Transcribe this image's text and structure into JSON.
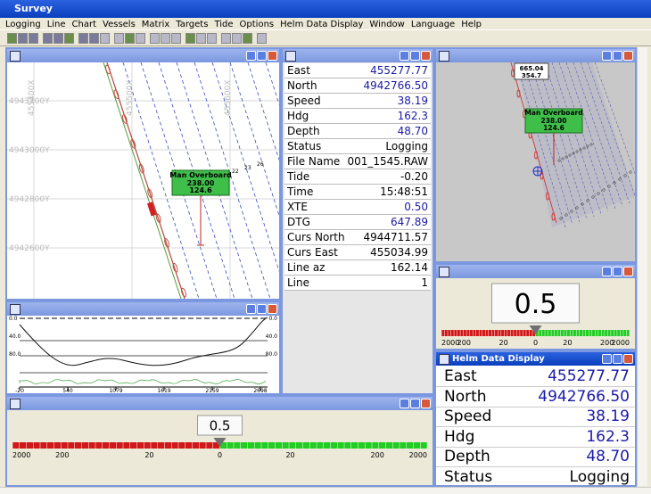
{
  "app_title": "Survey",
  "menu": [
    "Logging",
    "Line",
    "Chart",
    "Vessels",
    "Matrix",
    "Targets",
    "Tide",
    "Options",
    "Helm Data Display",
    "Window",
    "Language",
    "Help"
  ],
  "map": {
    "y_labels": [
      "4943200Y",
      "4943000Y",
      "4942800Y",
      "4942600Y"
    ],
    "x_labels": [
      "455400X",
      "455500X",
      "455600X"
    ],
    "points": [
      "22",
      "23",
      "26"
    ],
    "marker": {
      "title": "Man Overboard",
      "lines": [
        "238.00",
        "124.6"
      ]
    }
  },
  "data_table": {
    "rows": [
      {
        "label": "East",
        "value": "455277.77",
        "color": "#1a1aa6"
      },
      {
        "label": "North",
        "value": "4942766.50",
        "color": "#1a1aa6"
      },
      {
        "label": "Speed",
        "value": "38.19",
        "color": "#1a1aa6"
      },
      {
        "label": "Hdg",
        "value": "162.3",
        "color": "#1a1aa6"
      },
      {
        "label": "Depth",
        "value": "48.70",
        "color": "#1a1aa6"
      },
      {
        "label": "Status",
        "value": "Logging",
        "color": "#000000"
      },
      {
        "label": "File Name",
        "value": "001_1545.RAW",
        "color": "#000000"
      },
      {
        "label": "Tide",
        "value": "-0.20",
        "color": "#000000"
      },
      {
        "label": "Time",
        "value": "15:48:51",
        "color": "#000000"
      },
      {
        "label": "XTE",
        "value": "0.50",
        "color": "#1a1aa6"
      },
      {
        "label": "DTG",
        "value": "647.89",
        "color": "#1a1aa6"
      },
      {
        "label": "Curs North",
        "value": "4944711.57",
        "color": "#000000"
      },
      {
        "label": "Curs East",
        "value": "455034.99",
        "color": "#000000"
      },
      {
        "label": "Line az",
        "value": "162.14",
        "color": "#000000"
      },
      {
        "label": "Line",
        "value": "1",
        "color": "#000000"
      }
    ]
  },
  "overview": {
    "callout": [
      "665.04",
      "354.7"
    ],
    "marker": {
      "title": "Man Overboard",
      "lines": [
        "238.00",
        "124.6"
      ]
    }
  },
  "helm_gauge": {
    "value": "0.5",
    "scale": [
      "2000",
      "200",
      "20",
      "0",
      "20",
      "200",
      "2000"
    ]
  },
  "profile": {
    "y_labels": [
      "0.0",
      "40.0",
      "80.0"
    ],
    "x_labels": [
      "-20",
      "540",
      "1079",
      "1619",
      "2159",
      "2698"
    ]
  },
  "bottom_gauge": {
    "value": "0.5",
    "scale": [
      "2000",
      "200",
      "20",
      "0",
      "20",
      "200",
      "2000"
    ]
  },
  "helm_display": {
    "title": "Helm Data Display",
    "rows": [
      {
        "label": "East",
        "value": "455277.77"
      },
      {
        "label": "North",
        "value": "4942766.50"
      },
      {
        "label": "Speed",
        "value": "38.19"
      },
      {
        "label": "Hdg",
        "value": "162.3"
      },
      {
        "label": "Depth",
        "value": "48.70"
      },
      {
        "label": "Status",
        "value": "Logging"
      }
    ]
  }
}
